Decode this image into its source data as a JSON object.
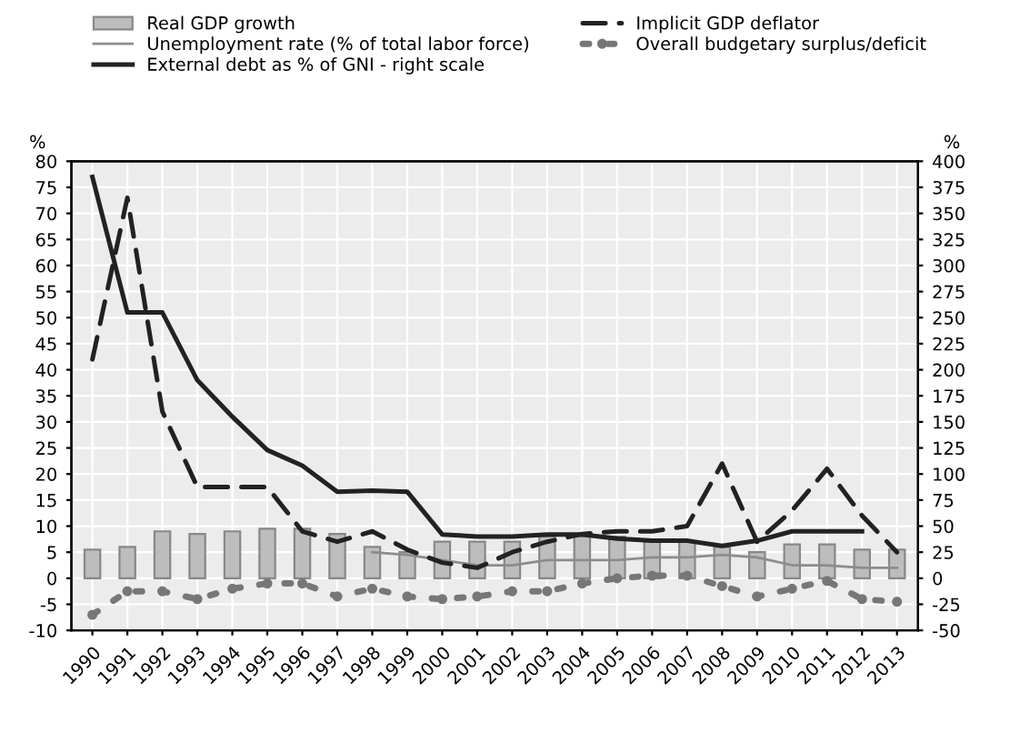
{
  "chart_data": {
    "type": "bar",
    "categories": [
      "1990",
      "1991",
      "1992",
      "1993",
      "1994",
      "1995",
      "1996",
      "1997",
      "1998",
      "1999",
      "2000",
      "2001",
      "2002",
      "2003",
      "2004",
      "2005",
      "2006",
      "2007",
      "2008",
      "2009",
      "2010",
      "2011",
      "2012",
      "2013"
    ],
    "ylabel": "%",
    "y2label": "%",
    "series": [
      {
        "name": "Real GDP growth",
        "color": "#bdbdbd",
        "values": [
          5.5,
          6,
          9,
          8.5,
          9,
          9.5,
          9.5,
          8.5,
          6,
          5,
          7,
          7,
          7,
          8,
          8,
          8,
          7,
          7,
          6,
          5,
          6.5,
          6.5,
          5.5,
          5.5
        ]
      },
      {
        "name": "Unemployment rate (% of total labor force)",
        "type": "line",
        "color": "#8c8c8c",
        "line_style": "solid",
        "values": [
          null,
          null,
          null,
          null,
          null,
          null,
          null,
          null,
          5,
          4.5,
          3.5,
          2.5,
          2.5,
          3.5,
          3.5,
          3.5,
          4,
          4,
          4.5,
          4,
          2.5,
          2.5,
          2,
          2
        ]
      },
      {
        "name": "External debt as % of GNI - right scale",
        "type": "line",
        "axis": "y2",
        "color": "#222222",
        "line_style": "solid",
        "values": [
          385,
          255,
          255,
          190,
          155,
          123,
          108,
          83,
          84,
          83,
          42,
          40,
          40,
          42,
          42,
          38,
          36,
          36,
          31,
          36,
          45,
          45,
          45,
          null
        ]
      },
      {
        "name": "Implicit GDP deflator",
        "type": "line",
        "color": "#222222",
        "line_style": "dashed",
        "values": [
          42,
          73,
          32,
          17.5,
          17.5,
          17.5,
          9,
          7,
          9,
          5.5,
          3,
          2,
          5,
          7,
          8.5,
          9,
          9,
          10,
          22,
          7,
          13,
          21,
          12,
          5
        ]
      },
      {
        "name": "Overall budgetary surplus/deficit",
        "type": "line",
        "color": "#777777",
        "line_style": "dotted",
        "marker": "circle",
        "values": [
          -7,
          -2.5,
          -2.5,
          -4,
          -2,
          -1,
          -1,
          -3.5,
          -2,
          -3.5,
          -4,
          -3.5,
          -2.5,
          -2.5,
          -1,
          0,
          0.5,
          0.5,
          -1.5,
          -3.5,
          -2,
          -0.5,
          -4,
          -4.5
        ]
      }
    ],
    "ylim": [
      -10,
      80
    ],
    "yticks": [
      -10,
      -5,
      0,
      5,
      10,
      15,
      20,
      25,
      30,
      35,
      40,
      45,
      50,
      55,
      60,
      65,
      70,
      75,
      80
    ],
    "y2lim": [
      -50,
      400
    ],
    "y2ticks": [
      -50,
      -25,
      0,
      25,
      50,
      75,
      100,
      125,
      150,
      175,
      200,
      225,
      250,
      275,
      300,
      325,
      350,
      375,
      400
    ],
    "grid": true,
    "legend": "top"
  }
}
